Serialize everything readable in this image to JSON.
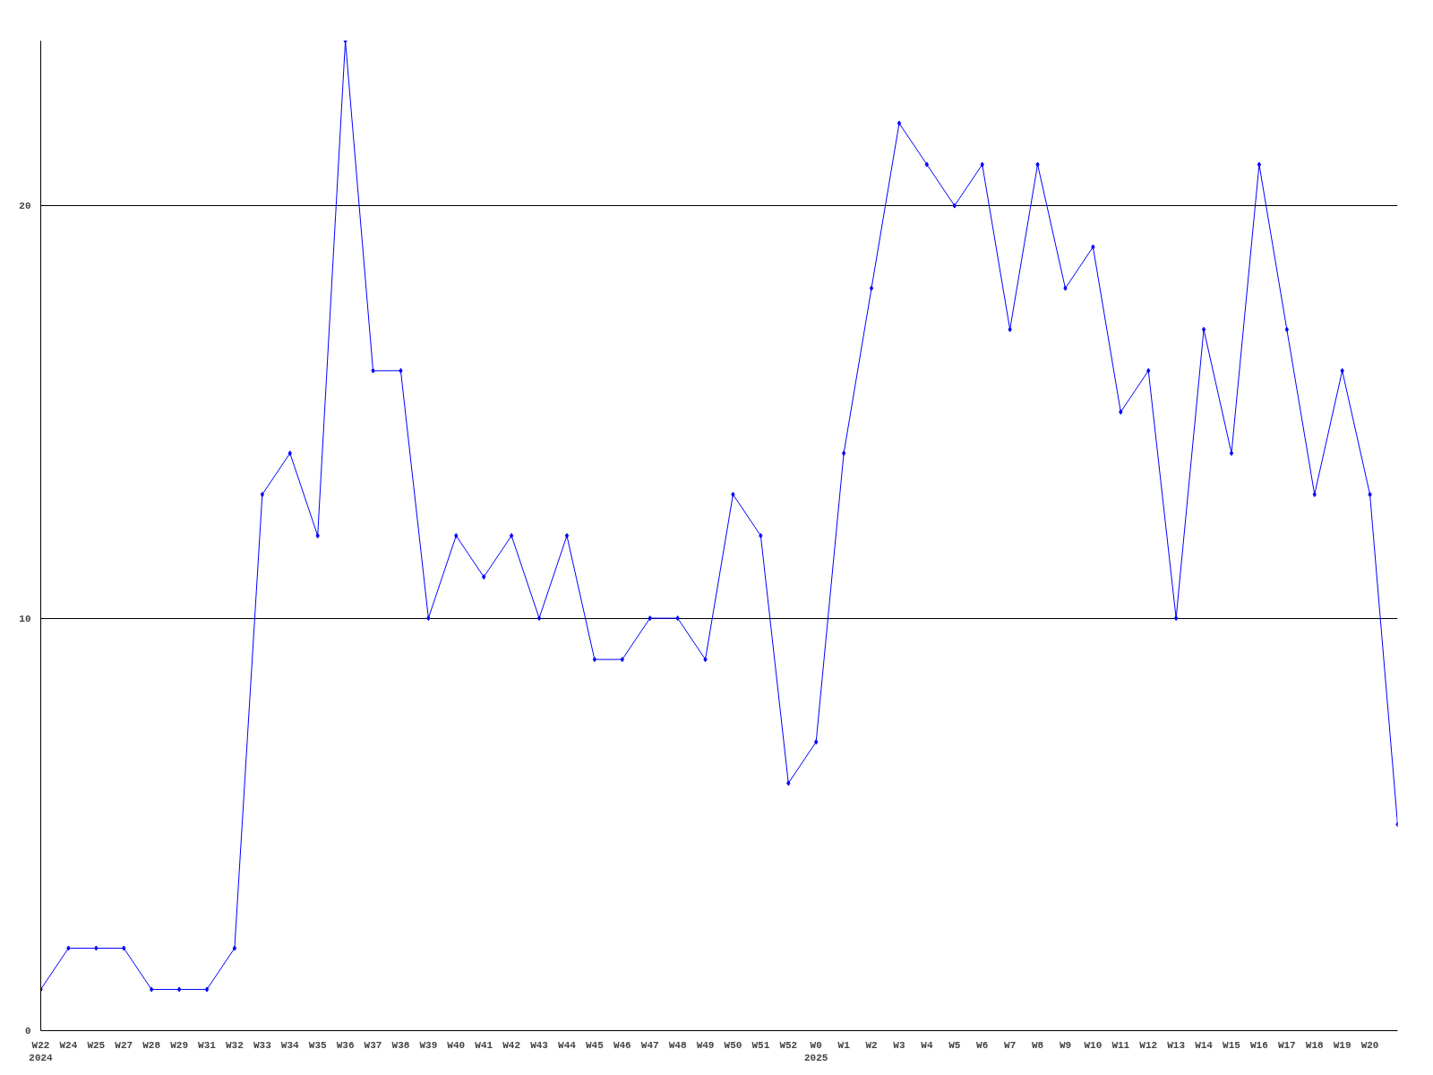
{
  "chart_data": {
    "type": "line",
    "categories": [
      "W22\n2024",
      "W24",
      "W25",
      "W27",
      "W28",
      "W29",
      "W31",
      "W32",
      "W33",
      "W34",
      "W35",
      "W36",
      "W37",
      "W38",
      "W39",
      "W40",
      "W41",
      "W42",
      "W43",
      "W44",
      "W45",
      "W46",
      "W47",
      "W48",
      "W49",
      "W50",
      "W51",
      "W52",
      "W0\n2025",
      "W1",
      "W2",
      "W3",
      "W4",
      "W5",
      "W6",
      "W7",
      "W8",
      "W9",
      "W10",
      "W11",
      "W12",
      "W13",
      "W14",
      "W15",
      "W16",
      "W17",
      "W18",
      "W19",
      "W20",
      null
    ],
    "series": [
      {
        "color": "#0000ff",
        "values": [
          1,
          2,
          2,
          2,
          1,
          1,
          1,
          2,
          13,
          14,
          12,
          24,
          16,
          16,
          10,
          12,
          11,
          12,
          10,
          12,
          9,
          9,
          10,
          10,
          9,
          13,
          12,
          6,
          7,
          14,
          18,
          22,
          21,
          20,
          21,
          17,
          21,
          18,
          19,
          15,
          16,
          10,
          17,
          14,
          21,
          17,
          13,
          16,
          13,
          5
        ]
      }
    ],
    "ylim": [
      0,
      24
    ],
    "yticks": [
      0,
      10,
      20
    ],
    "grid": "y",
    "marker": "diamond",
    "line_style": "solid"
  }
}
